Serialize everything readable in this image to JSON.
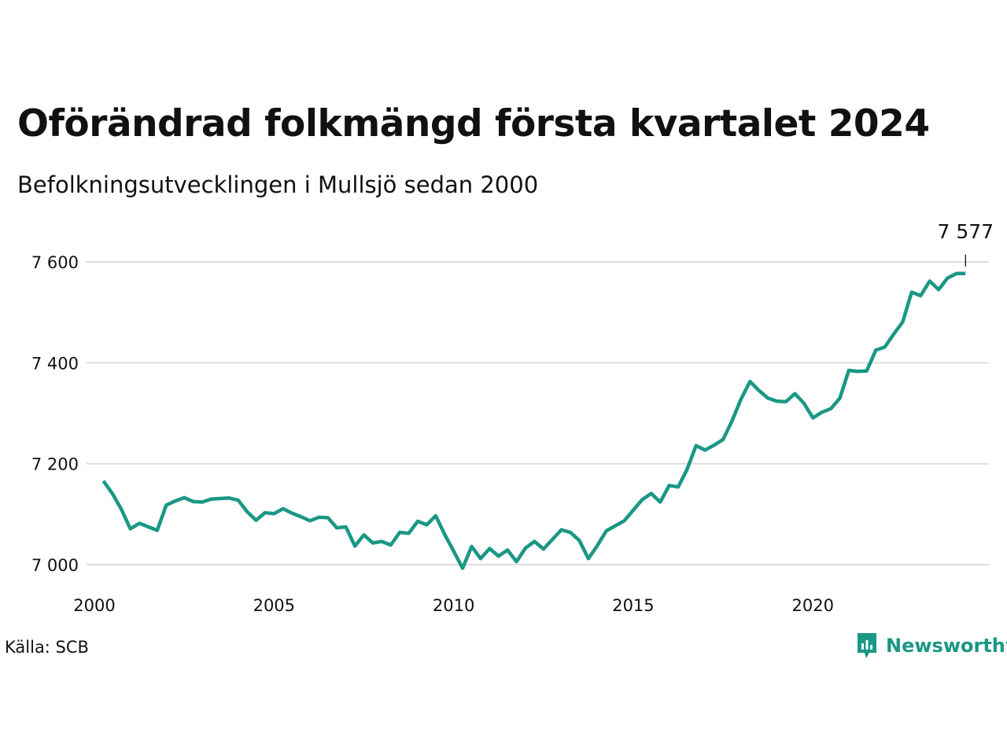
{
  "header": {
    "title": "Oförändrad folkmängd första kvartalet 2024",
    "subtitle": "Befolkningsutvecklingen i Mullsjö sedan 2000"
  },
  "footer": {
    "source": "Källa: SCB",
    "brand": "Newsworthy",
    "brand_icon": "newsworthy-logo-icon"
  },
  "colors": {
    "line": "#1a9785",
    "grid": "#dcdcdc",
    "text": "#111111",
    "brand": "#1a9785"
  },
  "chart_data": {
    "type": "line",
    "title": "Oförändrad folkmängd första kvartalet 2024",
    "subtitle": "Befolkningsutvecklingen i Mullsjö sedan 2000",
    "xlabel": "",
    "ylabel": "",
    "x_ticks": [
      2000,
      2005,
      2010,
      2015,
      2020
    ],
    "x_tick_labels": [
      "2000",
      "2005",
      "2010",
      "2015",
      "2020"
    ],
    "y_ticks": [
      7000,
      7200,
      7400,
      7600
    ],
    "y_tick_labels": [
      "7 000",
      "7 200",
      "7 400",
      "7 600"
    ],
    "xlim": [
      2000,
      2024.9
    ],
    "ylim": [
      6985,
      7620
    ],
    "grid": true,
    "end_label": "7 577",
    "series": [
      {
        "x": [
          2000.25,
          2000.5,
          2000.75,
          2001,
          2001.25,
          2001.5,
          2001.75,
          2002,
          2002.25,
          2002.5,
          2002.75,
          2003,
          2003.25,
          2003.5,
          2003.75,
          2004,
          2004.25,
          2004.5,
          2004.75,
          2005,
          2005.25,
          2005.5,
          2005.75,
          2006,
          2006.25,
          2006.5,
          2006.75,
          2007,
          2007.25,
          2007.5,
          2007.75,
          2008,
          2008.25,
          2008.5,
          2008.75,
          2009,
          2009.25,
          2009.5,
          2009.75,
          2010,
          2010.25,
          2010.5,
          2010.75,
          2011,
          2011.25,
          2011.5,
          2011.75,
          2012,
          2012.25,
          2012.5,
          2012.75,
          2013,
          2013.25,
          2013.5,
          2013.75,
          2014,
          2014.25,
          2014.5,
          2014.75,
          2015,
          2015.25,
          2015.5,
          2015.75,
          2016,
          2016.25,
          2016.5,
          2016.75,
          2017,
          2017.25,
          2017.5,
          2017.75,
          2018,
          2018.25,
          2018.5,
          2018.75,
          2019,
          2019.25,
          2019.5,
          2019.75,
          2020,
          2020.25,
          2020.5,
          2020.75,
          2021,
          2021.25,
          2021.5,
          2021.75,
          2022,
          2022.25,
          2022.5,
          2022.75,
          2023,
          2023.25,
          2023.5,
          2023.75,
          2024,
          2024.25
        ],
        "values": [
          7166,
          7141,
          7110,
          7071,
          7082,
          7075,
          7068,
          7118,
          7126,
          7133,
          7125,
          7124,
          7130,
          7131,
          7132,
          7128,
          7105,
          7088,
          7103,
          7101,
          7111,
          7102,
          7095,
          7087,
          7094,
          7093,
          7073,
          7075,
          7037,
          7059,
          7043,
          7046,
          7039,
          7064,
          7062,
          7086,
          7079,
          7097,
          7060,
          7027,
          6993,
          7036,
          7012,
          7032,
          7017,
          7029,
          7006,
          7033,
          7046,
          7031,
          7050,
          7069,
          7064,
          7048,
          7012,
          7038,
          7067,
          7077,
          7087,
          7108,
          7129,
          7141,
          7124,
          7157,
          7154,
          7189,
          7236,
          7227,
          7237,
          7248,
          7285,
          7328,
          7363,
          7345,
          7330,
          7324,
          7323,
          7339,
          7320,
          7291,
          7302,
          7309,
          7330,
          7385,
          7383,
          7384,
          7425,
          7431,
          7457,
          7481,
          7540,
          7533,
          7562,
          7545,
          7568,
          7577,
          7577
        ]
      }
    ]
  }
}
